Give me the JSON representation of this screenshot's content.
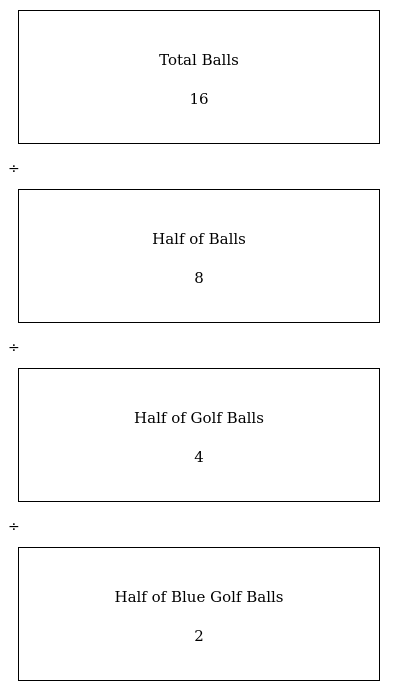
{
  "boxes": [
    {
      "title": "Total Balls",
      "value": "16"
    },
    {
      "title": "Half of Balls",
      "value": "8"
    },
    {
      "title": "Half of Golf Balls",
      "value": "4"
    },
    {
      "title": "Half of Blue Golf Balls",
      "value": "2"
    }
  ],
  "operators": [
    "÷",
    "÷",
    "÷"
  ]
}
